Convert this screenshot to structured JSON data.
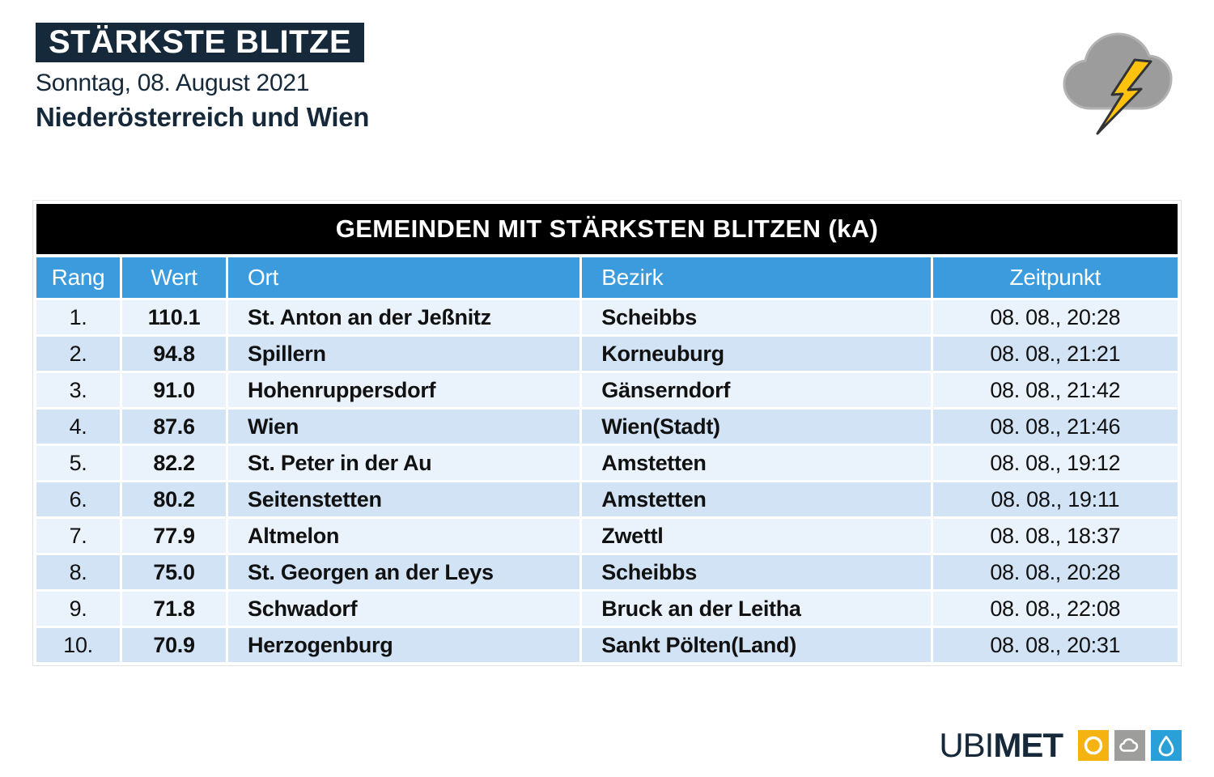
{
  "header": {
    "badge": "STÄRKSTE BLITZE",
    "date": "Sonntag, 08. August 2021",
    "region": "Niederösterreich und Wien"
  },
  "table": {
    "title": "GEMEINDEN MIT STÄRKSTEN BLITZEN (kA)",
    "columns": [
      {
        "key": "rang",
        "label": "Rang",
        "align": "center"
      },
      {
        "key": "wert",
        "label": "Wert",
        "align": "center"
      },
      {
        "key": "ort",
        "label": "Ort",
        "align": "left"
      },
      {
        "key": "bezirk",
        "label": "Bezirk",
        "align": "left"
      },
      {
        "key": "zeitpunkt",
        "label": "Zeitpunkt",
        "align": "center"
      }
    ],
    "rows": [
      {
        "rang": "1.",
        "wert": "110.1",
        "ort": "St. Anton an der Jeßnitz",
        "bezirk": "Scheibbs",
        "zeitpunkt": "08. 08., 20:28"
      },
      {
        "rang": "2.",
        "wert": "94.8",
        "ort": "Spillern",
        "bezirk": "Korneuburg",
        "zeitpunkt": "08. 08., 21:21"
      },
      {
        "rang": "3.",
        "wert": "91.0",
        "ort": "Hohenruppersdorf",
        "bezirk": "Gänserndorf",
        "zeitpunkt": "08. 08., 21:42"
      },
      {
        "rang": "4.",
        "wert": "87.6",
        "ort": "Wien",
        "bezirk": "Wien(Stadt)",
        "zeitpunkt": "08. 08., 21:46"
      },
      {
        "rang": "5.",
        "wert": "82.2",
        "ort": "St. Peter in der Au",
        "bezirk": "Amstetten",
        "zeitpunkt": "08. 08., 19:12"
      },
      {
        "rang": "6.",
        "wert": "80.2",
        "ort": "Seitenstetten",
        "bezirk": "Amstetten",
        "zeitpunkt": "08. 08., 19:11"
      },
      {
        "rang": "7.",
        "wert": "77.9",
        "ort": "Altmelon",
        "bezirk": "Zwettl",
        "zeitpunkt": "08. 08., 18:37"
      },
      {
        "rang": "8.",
        "wert": "75.0",
        "ort": "St. Georgen an der Leys",
        "bezirk": "Scheibbs",
        "zeitpunkt": "08. 08., 20:28"
      },
      {
        "rang": "9.",
        "wert": "71.8",
        "ort": "Schwadorf",
        "bezirk": "Bruck an der Leitha",
        "zeitpunkt": "08. 08., 22:08"
      },
      {
        "rang": "10.",
        "wert": "70.9",
        "ort": "Herzogenburg",
        "bezirk": "Sankt Pölten(Land)",
        "zeitpunkt": "08. 08., 20:31"
      }
    ]
  },
  "chart_data": {
    "type": "table",
    "title": "GEMEINDEN MIT STÄRKSTEN BLITZEN (kA)",
    "columns": [
      "Rang",
      "Wert",
      "Ort",
      "Bezirk",
      "Zeitpunkt"
    ],
    "rows": [
      [
        "1.",
        "110.1",
        "St. Anton an der Jeßnitz",
        "Scheibbs",
        "08. 08., 20:28"
      ],
      [
        "2.",
        "94.8",
        "Spillern",
        "Korneuburg",
        "08. 08., 21:21"
      ],
      [
        "3.",
        "91.0",
        "Hohenruppersdorf",
        "Gänserndorf",
        "08. 08., 21:42"
      ],
      [
        "4.",
        "87.6",
        "Wien",
        "Wien(Stadt)",
        "08. 08., 21:46"
      ],
      [
        "5.",
        "82.2",
        "St. Peter in der Au",
        "Amstetten",
        "08. 08., 19:12"
      ],
      [
        "6.",
        "80.2",
        "Seitenstetten",
        "Amstetten",
        "08. 08., 19:11"
      ],
      [
        "7.",
        "77.9",
        "Altmelon",
        "Zwettl",
        "08. 08., 18:37"
      ],
      [
        "8.",
        "75.0",
        "St. Georgen an der Leys",
        "Scheibbs",
        "08. 08., 20:28"
      ],
      [
        "9.",
        "71.8",
        "Schwadorf",
        "Bruck an der Leitha",
        "08. 08., 22:08"
      ],
      [
        "10.",
        "70.9",
        "Herzogenburg",
        "Sankt Pölten(Land)",
        "08. 08., 20:31"
      ]
    ],
    "unit": "kA",
    "values_kA": [
      110.1,
      94.8,
      91.0,
      87.6,
      82.2,
      80.2,
      77.9,
      75.0,
      71.8,
      70.9
    ]
  },
  "footer": {
    "brand_part1": "UBI",
    "brand_part2": "MET",
    "icons": [
      "sun-icon",
      "cloud-icon",
      "drop-icon"
    ]
  },
  "colors": {
    "navy": "#16293a",
    "title_bar": "#000000",
    "header_blue": "#3b9bdc",
    "row_light": "#eaf2fb",
    "row_dark": "#d2e3f5",
    "bolt_yellow": "#ffc20e",
    "cloud_gray": "#9c9c9c",
    "icon_sun_bg": "#f5b312",
    "icon_cloud_bg": "#9d9d9c",
    "icon_drop_bg": "#29a0d8"
  }
}
